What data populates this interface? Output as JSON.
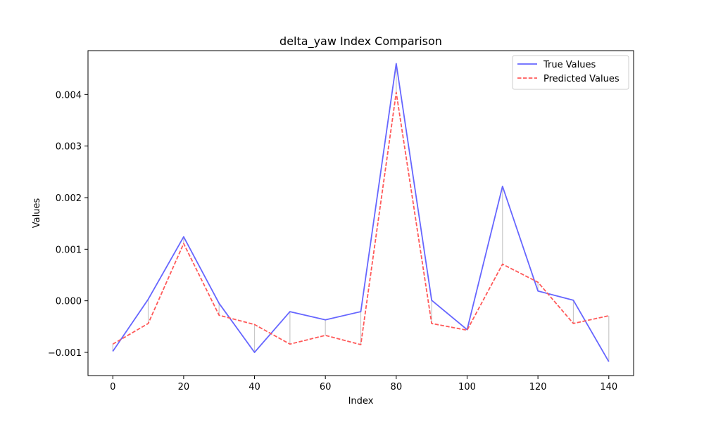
{
  "chart_data": {
    "type": "line",
    "title": "delta_yaw Index Comparison",
    "xlabel": "Index",
    "ylabel": "Values",
    "x": [
      0,
      10,
      20,
      30,
      40,
      50,
      60,
      70,
      80,
      90,
      100,
      110,
      120,
      130,
      140
    ],
    "xlim": [
      -7,
      147
    ],
    "ylim": [
      -0.00145,
      0.00485
    ],
    "x_ticks": [
      0,
      20,
      40,
      60,
      80,
      100,
      120,
      140
    ],
    "x_tick_labels": [
      "0",
      "20",
      "40",
      "60",
      "80",
      "100",
      "120",
      "140"
    ],
    "y_ticks": [
      -0.001,
      0.0,
      0.001,
      0.002,
      0.003,
      0.004
    ],
    "y_tick_labels": [
      "−0.001",
      "0.000",
      "0.001",
      "0.002",
      "0.003",
      "0.004"
    ],
    "grid": false,
    "legend_position": "top-right",
    "difference_lines": true,
    "series": [
      {
        "name": "True Values",
        "style": "solid",
        "color": "#6666ff",
        "values": [
          -0.00098,
          3e-05,
          0.00124,
          -5e-05,
          -0.001,
          -0.00021,
          -0.00037,
          -0.00021,
          0.0046,
          1e-05,
          -0.00056,
          0.00222,
          0.00019,
          1e-05,
          -0.00118
        ]
      },
      {
        "name": "Predicted Values",
        "style": "dashed",
        "color": "#ff5a5a",
        "values": [
          -0.00084,
          -0.00044,
          0.00111,
          -0.00028,
          -0.00046,
          -0.00084,
          -0.00067,
          -0.00085,
          0.00404,
          -0.00044,
          -0.00057,
          0.00071,
          0.00036,
          -0.00044,
          -0.00029
        ]
      }
    ],
    "diff_color": "#c8c8c8"
  }
}
